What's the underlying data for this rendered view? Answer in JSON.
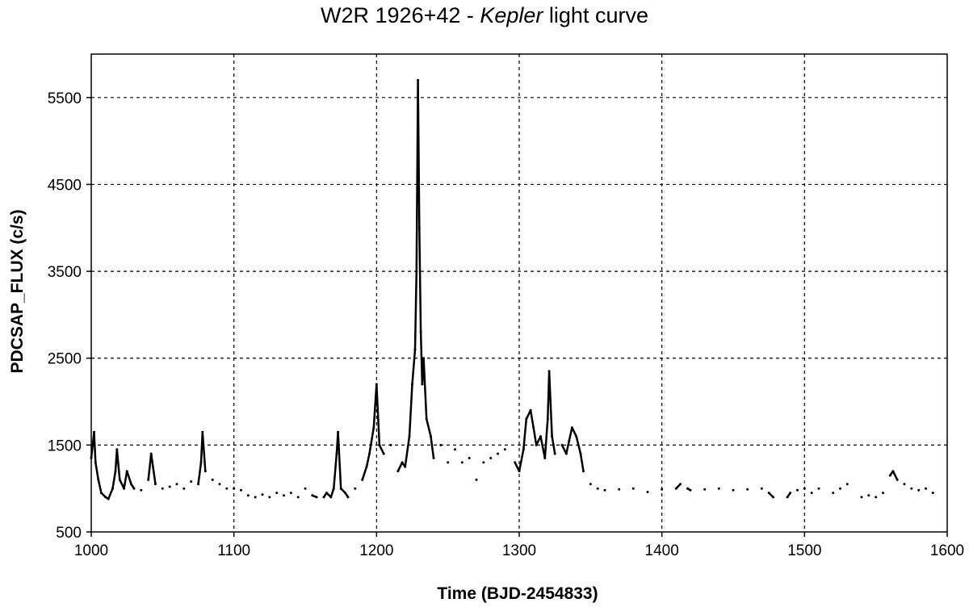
{
  "chart_data": {
    "type": "line",
    "title_prefix": "W2R 1926+42 - ",
    "title_italic": "Kepler",
    "title_suffix": " light curve",
    "xlabel": "Time (BJD-2454833)",
    "ylabel": "PDCSAP_FLUX (c/s)",
    "xlim": [
      1000,
      1600
    ],
    "ylim": [
      500,
      6000
    ],
    "x_ticks": [
      1000,
      1100,
      1200,
      1300,
      1400,
      1500,
      1600
    ],
    "y_ticks": [
      500,
      1500,
      2500,
      3500,
      4500,
      5500
    ],
    "grid": true,
    "grid_style": "dashed",
    "line_color": "#000000",
    "series": [
      {
        "x": [
          1000,
          1002,
          1003,
          1005,
          1007,
          1010,
          1012,
          1015,
          1017,
          1018,
          1020,
          1023,
          1025,
          1028,
          1030,
          1035,
          1040,
          1042,
          1045,
          1050,
          1055,
          1060,
          1065,
          1070,
          1075,
          1077,
          1078,
          1080,
          1085,
          1090,
          1095,
          1100,
          1105,
          1110,
          1115,
          1120,
          1125,
          1130,
          1135,
          1140,
          1145,
          1150,
          1155,
          1158,
          1163,
          1165,
          1168,
          1170,
          1172,
          1173,
          1175,
          1178,
          1180,
          1185,
          1190,
          1193,
          1195,
          1198,
          1200,
          1202,
          1205,
          1210,
          1215,
          1218,
          1220,
          1223,
          1225,
          1227,
          1228,
          1229,
          1230,
          1231,
          1232,
          1233,
          1235,
          1238,
          1240,
          1245,
          1250,
          1255,
          1260,
          1265,
          1270,
          1275,
          1280,
          1285,
          1290,
          1297,
          1300,
          1303,
          1305,
          1308,
          1310,
          1312,
          1315,
          1318,
          1320,
          1321,
          1323,
          1325,
          1330,
          1333,
          1335,
          1337,
          1340,
          1343,
          1345,
          1350,
          1355,
          1360,
          1370,
          1380,
          1390,
          1400,
          1410,
          1413,
          1418,
          1420,
          1430,
          1440,
          1450,
          1460,
          1470,
          1475,
          1478,
          1488,
          1490,
          1495,
          1500,
          1505,
          1510,
          1520,
          1525,
          1530,
          1540,
          1545,
          1550,
          1555,
          1560,
          1562,
          1565,
          1570,
          1575,
          1580,
          1585,
          1590
        ],
        "y": [
          1350,
          1650,
          1300,
          1100,
          950,
          900,
          880,
          1000,
          1200,
          1450,
          1100,
          1000,
          1200,
          1050,
          1000,
          980,
          1100,
          1400,
          1050,
          1000,
          1020,
          1050,
          1000,
          1080,
          1050,
          1300,
          1650,
          1200,
          1100,
          1050,
          1000,
          1000,
          980,
          920,
          900,
          930,
          900,
          950,
          920,
          950,
          900,
          1000,
          920,
          900,
          900,
          950,
          900,
          1000,
          1400,
          1650,
          1000,
          950,
          900,
          1000,
          1100,
          1250,
          1400,
          1700,
          2200,
          1500,
          1400,
          1500,
          1200,
          1300,
          1250,
          1600,
          2200,
          2600,
          3500,
          5700,
          4000,
          2800,
          2200,
          2500,
          1800,
          1600,
          1350,
          1500,
          1300,
          1450,
          1300,
          1350,
          1100,
          1300,
          1350,
          1400,
          1450,
          1300,
          1200,
          1450,
          1800,
          1900,
          1700,
          1500,
          1600,
          1350,
          1800,
          2350,
          1600,
          1400,
          1500,
          1400,
          1550,
          1700,
          1600,
          1400,
          1200,
          1050,
          1000,
          980,
          990,
          1000,
          960,
          990,
          1000,
          1050,
          1000,
          980,
          990,
          1000,
          980,
          990,
          1000,
          950,
          900,
          900,
          950,
          980,
          1000,
          950,
          1000,
          950,
          1000,
          1050,
          900,
          920,
          900,
          950,
          1150,
          1200,
          1100,
          1050,
          1000,
          980,
          1000,
          950
        ]
      }
    ]
  }
}
